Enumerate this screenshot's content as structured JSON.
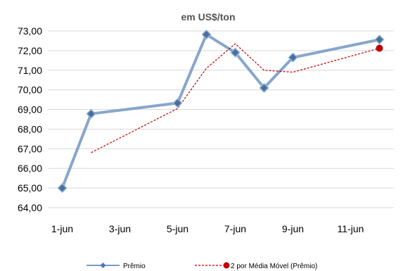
{
  "chart_data": {
    "type": "line",
    "subtitle": "em US$/ton",
    "x_ticks": [
      "1-jun",
      "3-jun",
      "5-jun",
      "7-jun",
      "9-jun",
      "11-jun"
    ],
    "y_ticks": [
      "64,00",
      "65,00",
      "66,00",
      "67,00",
      "68,00",
      "69,00",
      "70,00",
      "71,00",
      "72,00",
      "73,00"
    ],
    "ylim": [
      64,
      73
    ],
    "xlim": [
      0.5,
      12.5
    ],
    "grid": "horizontal",
    "legend_placement": "bottom",
    "series": [
      {
        "name": "Prêmio",
        "color": "#7a9cc6",
        "marker": "diamond",
        "x": [
          1,
          2,
          5,
          6,
          7,
          8,
          9,
          12
        ],
        "values": [
          65.0,
          68.78,
          69.33,
          72.82,
          71.9,
          70.1,
          71.65,
          72.56
        ]
      },
      {
        "name": "2 por Média Móvel (Prêmio)",
        "color": "#c00000",
        "style": "dashed",
        "x": [
          2,
          5,
          6,
          7,
          8,
          9,
          12
        ],
        "values": [
          66.8,
          69.05,
          71.1,
          72.35,
          71.0,
          70.9,
          72.12
        ]
      }
    ]
  }
}
